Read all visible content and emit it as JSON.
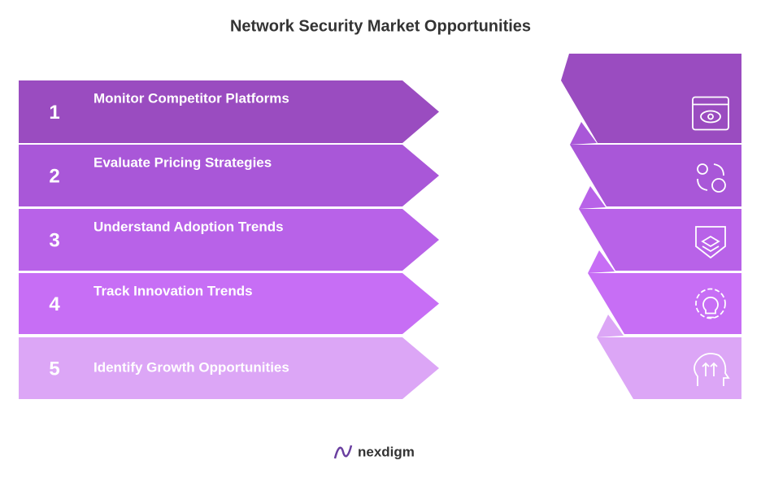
{
  "header": {
    "title": "Network Security Market Opportunities"
  },
  "steps": [
    {
      "number": "1",
      "label": "Monitor Competitor Platforms",
      "color": "#9a4cc0"
    },
    {
      "number": "2",
      "label": "Evaluate Pricing Strategies",
      "color": "#a957d8"
    },
    {
      "number": "3",
      "label": "Understand Adoption Trends",
      "color": "#b862e8"
    },
    {
      "number": "4",
      "label": "Track Innovation Trends",
      "color": "#c76ef5"
    },
    {
      "number": "5",
      "label": "Identify Growth Opportunities",
      "color": "#dca6f6"
    }
  ],
  "footer": {
    "brand": "nexdigm"
  }
}
